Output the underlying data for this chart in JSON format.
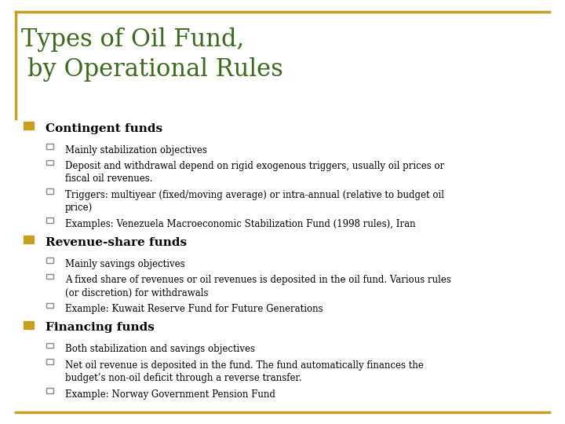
{
  "title_line1": "Types of Oil Fund,",
  "title_line2": "by Operational Rules",
  "title_color": "#3a6b1a",
  "background_color": "#ffffff",
  "bullet_square_color": "#c8a020",
  "sub_bullet_color": "#888888",
  "body_text_color": "#000000",
  "header_text_color": "#000000",
  "border_color": "#c8a020",
  "title_fontsize": 22,
  "heading_fontsize": 11,
  "body_fontsize": 8.5,
  "sections": [
    {
      "heading": "Contingent funds",
      "bullets": [
        [
          "Mainly stabilization objectives"
        ],
        [
          "Deposit and withdrawal depend on rigid exogenous triggers, usually oil prices or",
          "fiscal oil revenues."
        ],
        [
          "Triggers: multiyear (fixed/moving average) or intra-annual (relative to budget oil",
          "price)"
        ],
        [
          "Examples: Venezuela Macroeconomic Stabilization Fund (1998 rules), Iran"
        ]
      ]
    },
    {
      "heading": "Revenue-share funds",
      "bullets": [
        [
          "Mainly savings objectives"
        ],
        [
          "A fixed share of revenues or oil revenues is deposited in the oil fund. Various rules",
          "(or discretion) for withdrawals"
        ],
        [
          "Example: Kuwait Reserve Fund for Future Generations"
        ]
      ]
    },
    {
      "heading": "Financing funds",
      "bullets": [
        [
          "Both stabilization and savings objectives"
        ],
        [
          "Net oil revenue is deposited in the fund. The fund automatically finances the",
          "budget’s non-oil deficit through a reverse transfer."
        ],
        [
          "Example: Norway Government Pension Fund"
        ]
      ]
    }
  ]
}
